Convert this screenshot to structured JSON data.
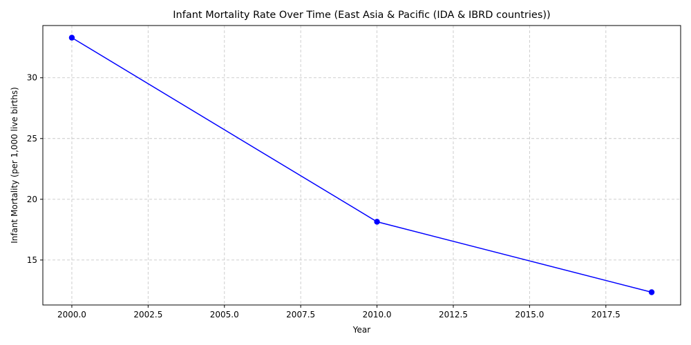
{
  "chart_data": {
    "type": "line",
    "title": "Infant Mortality Rate Over Time (East Asia & Pacific (IDA & IBRD countries))",
    "xlabel": "Year",
    "ylabel": "Infant Mortality (per 1,000 live births)",
    "xlim": [
      1999.05,
      2019.95
    ],
    "ylim": [
      11.3,
      34.3
    ],
    "grid": true,
    "legend": "none",
    "colors": {
      "series": "#0000ff"
    },
    "x_ticks": [
      2000,
      2002.5,
      2005,
      2007.5,
      2010,
      2012.5,
      2015,
      2017.5
    ],
    "x_tick_labels": [
      "2000.0",
      "2002.5",
      "2005.0",
      "2007.5",
      "2010.0",
      "2012.5",
      "2015.0",
      "2017.5"
    ],
    "y_ticks": [
      15,
      20,
      25,
      30
    ],
    "y_tick_labels": [
      "15",
      "20",
      "25",
      "30"
    ],
    "series": [
      {
        "x": [
          2000,
          2010,
          2019
        ],
        "values": [
          33.3,
          18.15,
          12.35
        ]
      }
    ]
  }
}
